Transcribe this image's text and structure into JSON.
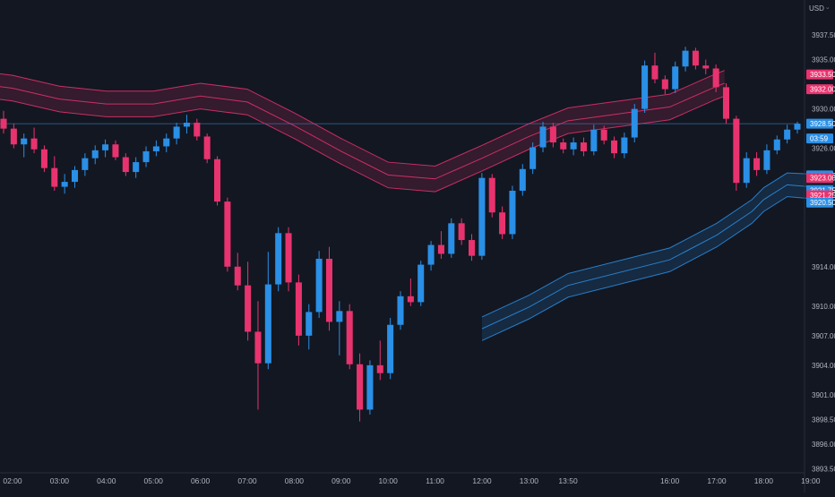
{
  "colors": {
    "background": "#131722",
    "up": "#2a8fe6",
    "down": "#e8336e",
    "axis_text": "#b2b5be",
    "last_price_line": "#3d7fb8",
    "red_band": "#e8336e",
    "blue_band": "#2a8fe6"
  },
  "header": {
    "currency": "USD"
  },
  "chart_data": {
    "type": "candlestick",
    "title": "",
    "grid": false,
    "xlabels": [
      "02:00",
      "03:00",
      "04:00",
      "05:00",
      "06:00",
      "07:00",
      "08:00",
      "09:00",
      "10:00",
      "11:00",
      "12:00",
      "13:00",
      "13:50",
      "16:00",
      "17:00",
      "18:00",
      "19:00"
    ],
    "yticks": [
      3937.5,
      3935.0,
      3930.0,
      3926.0,
      3914.0,
      3910.0,
      3907.0,
      3904.0,
      3901.0,
      3898.5,
      3896.0,
      3893.5
    ],
    "ytick_labels": [
      "3937.50",
      "3935.00",
      "3930.00",
      "3926.00",
      "3914.00",
      "3910.00",
      "3907.00",
      "3904.00",
      "3901.00",
      "3898.50",
      "3896.00",
      "3893.50"
    ],
    "ylim": [
      3892.0,
      3940.5
    ],
    "price_labels": [
      {
        "text": "3933.50",
        "value": 3933.5,
        "kind": "down"
      },
      {
        "text": "3932.00",
        "value": 3932.0,
        "kind": "down"
      },
      {
        "text": "3928.50",
        "value": 3928.5,
        "kind": "up"
      },
      {
        "text": "03:59",
        "value": 3927.0,
        "kind": "up"
      },
      {
        "text": "3923.25",
        "value": 3923.25,
        "kind": "up"
      },
      {
        "text": "3923.00",
        "value": 3923.0,
        "kind": "down"
      },
      {
        "text": "3921.75",
        "value": 3921.75,
        "kind": "up"
      },
      {
        "text": "3921.75",
        "value": 3921.75,
        "kind": "up"
      },
      {
        "text": "3921.25",
        "value": 3921.25,
        "kind": "down"
      },
      {
        "text": "3920.50",
        "value": 3920.5,
        "kind": "up"
      }
    ],
    "last_price": 3928.5,
    "red_band": {
      "x": [
        "01:40",
        "02:00",
        "03:00",
        "04:00",
        "05:00",
        "06:00",
        "07:00",
        "08:00",
        "09:00",
        "10:00",
        "11:00",
        "12:00",
        "13:00",
        "13:50",
        "16:00",
        "17:00",
        "17:10"
      ],
      "upper": [
        3933.6,
        3933.4,
        3932.3,
        3931.8,
        3931.8,
        3932.6,
        3932.0,
        3929.6,
        3927.0,
        3924.6,
        3924.2,
        3926.3,
        3928.5,
        3930.1,
        3931.5,
        3933.6,
        3933.9
      ],
      "middle": [
        3932.3,
        3932.1,
        3931.0,
        3930.5,
        3930.5,
        3931.3,
        3930.7,
        3928.3,
        3925.7,
        3923.3,
        3922.9,
        3925.0,
        3927.2,
        3928.8,
        3930.2,
        3932.3,
        3932.6
      ],
      "lower": [
        3931.0,
        3930.8,
        3929.7,
        3929.2,
        3929.2,
        3930.0,
        3929.4,
        3927.0,
        3924.4,
        3922.0,
        3921.6,
        3923.7,
        3925.9,
        3927.5,
        3928.9,
        3931.0,
        3931.3
      ]
    },
    "blue_band": {
      "x": [
        "12:00",
        "13:00",
        "13:50",
        "16:00",
        "17:00",
        "17:45",
        "18:00",
        "18:30",
        "19:00",
        "19:45"
      ],
      "upper": [
        3908.9,
        3911.1,
        3913.3,
        3915.9,
        3918.4,
        3920.8,
        3922.0,
        3923.5,
        3923.4,
        3923.3
      ],
      "middle": [
        3907.7,
        3909.9,
        3912.1,
        3914.7,
        3917.2,
        3919.6,
        3920.8,
        3922.3,
        3922.1,
        3922.0
      ],
      "lower": [
        3906.5,
        3908.7,
        3910.9,
        3913.5,
        3916.0,
        3918.4,
        3919.6,
        3921.1,
        3920.9,
        3920.7
      ]
    },
    "candles_fine": [
      [
        3929,
        3929.8,
        3927.5,
        3928
      ],
      [
        3928,
        3928.5,
        3926,
        3926.4
      ],
      [
        3926.4,
        3927.5,
        3925.1,
        3927
      ],
      [
        3927,
        3928.1,
        3925.5,
        3925.9
      ],
      [
        3925.9,
        3926.3,
        3923.6,
        3924
      ],
      [
        3924,
        3925.2,
        3921.7,
        3922.1
      ],
      [
        3922.1,
        3923.4,
        3921.4,
        3922.6
      ],
      [
        3922.6,
        3924.2,
        3922,
        3923.8
      ],
      [
        3923.8,
        3925.5,
        3923.2,
        3925
      ],
      [
        3925,
        3926.3,
        3924.4,
        3925.8
      ],
      [
        3925.8,
        3926.9,
        3925.1,
        3926.4
      ],
      [
        3926.4,
        3926.8,
        3924.8,
        3925.1
      ],
      [
        3925.1,
        3925.5,
        3923.2,
        3923.6
      ],
      [
        3923.6,
        3925.1,
        3923,
        3924.6
      ],
      [
        3924.6,
        3926.2,
        3924.1,
        3925.7
      ],
      [
        3925.7,
        3926.8,
        3925.2,
        3926.2
      ],
      [
        3926.2,
        3927.5,
        3925.6,
        3927
      ],
      [
        3927,
        3928.6,
        3926.4,
        3928.2
      ],
      [
        3928.2,
        3929.4,
        3927.5,
        3928.6
      ],
      [
        3928.6,
        3929,
        3926.8,
        3927.2
      ],
      [
        3927.2,
        3927.5,
        3924.5,
        3924.9
      ],
      [
        3924.9,
        3925.2,
        3920.2,
        3920.6
      ],
      [
        3920.6,
        3921,
        3913.5,
        3914
      ],
      [
        3914,
        3915.4,
        3911.6,
        3912.1
      ],
      [
        3912.1,
        3914.5,
        3906.5,
        3907.4
      ],
      [
        3907.4,
        3910.5,
        3899.5,
        3904.2
      ],
      [
        3904.2,
        3915.5,
        3903.6,
        3912.2
      ],
      [
        3912.2,
        3918,
        3911.5,
        3917.4
      ],
      [
        3917.4,
        3918,
        3911.5,
        3912.4
      ],
      [
        3912.4,
        3913.2,
        3906,
        3907
      ],
      [
        3907,
        3910.2,
        3905.6,
        3909.4
      ],
      [
        3909.4,
        3915.6,
        3908.8,
        3914.8
      ],
      [
        3914.8,
        3916,
        3907.5,
        3908.4
      ],
      [
        3908.4,
        3910.5,
        3905,
        3909.5
      ],
      [
        3909.5,
        3910.2,
        3903.6,
        3904.1
      ],
      [
        3904.1,
        3905.2,
        3898.3,
        3899.5
      ],
      [
        3899.5,
        3904.5,
        3899,
        3904
      ],
      [
        3904,
        3906.5,
        3902.5,
        3903.2
      ],
      [
        3903.2,
        3908.8,
        3902.6,
        3908.1
      ],
      [
        3908.1,
        3911.5,
        3907.6,
        3911
      ],
      [
        3911,
        3912.8,
        3910,
        3910.4
      ],
      [
        3910.4,
        3914.6,
        3910,
        3914.2
      ],
      [
        3914.2,
        3916.6,
        3913.6,
        3916.2
      ],
      [
        3916.2,
        3917.6,
        3914.8,
        3915.3
      ],
      [
        3915.3,
        3918.9,
        3914.9,
        3918.4
      ],
      [
        3918.4,
        3918.9,
        3916.2,
        3916.7
      ],
      [
        3916.7,
        3917.3,
        3914.6,
        3915.1
      ],
      [
        3915.1,
        3923.5,
        3914.7,
        3923
      ],
      [
        3923,
        3923.4,
        3919,
        3919.5
      ],
      [
        3919.5,
        3920.1,
        3916.8,
        3917.3
      ],
      [
        3917.3,
        3922.2,
        3916.8,
        3921.7
      ],
      [
        3921.7,
        3924.4,
        3921.2,
        3923.9
      ],
      [
        3923.9,
        3926.6,
        3923.4,
        3926.1
      ],
      [
        3926.1,
        3928.7,
        3925.6,
        3928.2
      ],
      [
        3928.2,
        3928.6,
        3926.1,
        3926.6
      ],
      [
        3926.6,
        3927,
        3925.5,
        3925.9
      ],
      [
        3925.9,
        3927.1,
        3925.3,
        3926.6
      ],
      [
        3926.6,
        3927.1,
        3925.2,
        3925.7
      ],
      [
        3925.7,
        3928.4,
        3925.3,
        3927.9
      ],
      [
        3927.9,
        3928.3,
        3926.4,
        3926.8
      ],
      [
        3926.8,
        3927.2,
        3925,
        3925.5
      ],
      [
        3925.5,
        3927.6,
        3925,
        3927.1
      ],
      [
        3927.1,
        3930.5,
        3926.6,
        3930
      ],
      [
        3930,
        3934.9,
        3929.6,
        3934.4
      ],
      [
        3934.4,
        3935.7,
        3932.6,
        3933
      ],
      [
        3933,
        3933.4,
        3931.5,
        3932
      ],
      [
        3932,
        3934.8,
        3931.6,
        3934.3
      ],
      [
        3934.3,
        3936.3,
        3933.8,
        3935.9
      ],
      [
        3935.9,
        3936.2,
        3934,
        3934.4
      ],
      [
        3934.4,
        3935,
        3933.5,
        3934.1
      ],
      [
        3934.1,
        3934.5,
        3931.7,
        3932.2
      ],
      [
        3932.2,
        3932.6,
        3928.5,
        3929
      ],
      [
        3929,
        3929.3,
        3921.7,
        3922.5
      ],
      [
        3922.5,
        3925.6,
        3922,
        3925
      ],
      [
        3925,
        3925.6,
        3923.2,
        3923.8
      ],
      [
        3923.8,
        3926.4,
        3923.4,
        3925.8
      ],
      [
        3925.8,
        3927.3,
        3925.4,
        3926.9
      ],
      [
        3926.9,
        3928.4,
        3926.5,
        3927.9
      ],
      [
        3927.9,
        3928.7,
        3927.5,
        3928.5
      ]
    ],
    "candles": [
      [
        3929,
        3930,
        3926,
        3926.5
      ],
      [
        3926.5,
        3928,
        3924.5,
        3927
      ],
      [
        3927,
        3928,
        3921.5,
        3922.5
      ],
      [
        3922.5,
        3925,
        3921,
        3924
      ],
      [
        3924,
        3927,
        3923.5,
        3926.5
      ],
      [
        3926.5,
        3927.5,
        3924,
        3925
      ],
      [
        3925,
        3926,
        3922.5,
        3923.5
      ],
      [
        3923.5,
        3926.5,
        3923,
        3926
      ],
      [
        3926,
        3927.5,
        3924.5,
        3925
      ],
      [
        3925,
        3926,
        3922.5,
        3924.5
      ],
      [
        3924.5,
        3928,
        3924,
        3927.5
      ],
      [
        3927.5,
        3929.5,
        3927,
        3929
      ],
      [
        3929,
        3929.5,
        3926,
        3926.5
      ],
      [
        3926.5,
        3927,
        3922,
        3923
      ],
      [
        3923,
        3923.5,
        3914,
        3915
      ],
      [
        3915,
        3916,
        3908,
        3910
      ],
      [
        3910,
        3914,
        3899.5,
        3904
      ],
      [
        3904,
        3916,
        3903.5,
        3912.5
      ],
      [
        3912.5,
        3918,
        3911,
        3916.5
      ],
      [
        3916.5,
        3917,
        3906,
        3907
      ],
      [
        3907,
        3915.5,
        3906.5,
        3914.5
      ],
      [
        3914.5,
        3916,
        3905,
        3909
      ],
      [
        3909,
        3910,
        3898.5,
        3900
      ],
      [
        3900,
        3905,
        3898.5,
        3904
      ],
      [
        3904,
        3909,
        3903,
        3908
      ],
      [
        3908,
        3913,
        3907,
        3911
      ],
      [
        3911,
        3915,
        3910,
        3914.5
      ],
      [
        3914.5,
        3917.5,
        3913,
        3916.5
      ],
      [
        3916.5,
        3918,
        3914,
        3915
      ],
      [
        3915,
        3923.5,
        3914.5,
        3923
      ],
      [
        3923,
        3923.5,
        3916.5,
        3917.5
      ],
      [
        3917.5,
        3922.5,
        3917,
        3922
      ],
      [
        3922,
        3926.5,
        3921.5,
        3926
      ],
      [
        3926,
        3928.5,
        3925.5,
        3928
      ],
      [
        3928,
        3929,
        3925,
        3925.5
      ],
      [
        3925.5,
        3929,
        3925,
        3928
      ],
      [
        3928,
        3931,
        3925,
        3929.5
      ],
      [
        3929.5,
        3935.5,
        3929,
        3933.5
      ],
      [
        3933.5,
        3935,
        3931.5,
        3932
      ],
      [
        3932,
        3936.5,
        3931.5,
        3935.5
      ],
      [
        3935.5,
        3936,
        3933,
        3934
      ],
      [
        3934,
        3934.5,
        3928.5,
        3929
      ],
      [
        3929,
        3929.5,
        3922,
        3923
      ],
      [
        3923,
        3926.5,
        3922.5,
        3926
      ],
      [
        3926,
        3928.5,
        3925.5,
        3928.5
      ]
    ]
  }
}
